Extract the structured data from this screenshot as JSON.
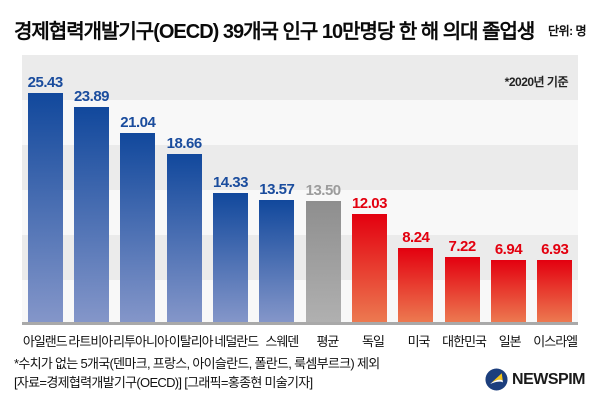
{
  "header": {
    "title": "경제협력개발기구(OECD) 39개국 인구 10만명당 한 해 의대 졸업생",
    "unit_label": "단위: 명"
  },
  "chart_data": {
    "type": "bar",
    "title": "경제협력개발기구(OECD) 39개국 인구 10만명당 한 해 의대 졸업생",
    "note": "*2020년 기준",
    "unit": "명",
    "ylim": [
      0,
      30
    ],
    "grid": "horizontal-bands",
    "categories": [
      "아일랜드",
      "라트비아",
      "리투아니아",
      "이탈리아",
      "네덜란드",
      "스웨덴",
      "평균",
      "독일",
      "미국",
      "대한민국",
      "일본",
      "이스라엘"
    ],
    "values": [
      25.43,
      23.89,
      21.04,
      18.66,
      14.33,
      13.57,
      13.5,
      12.03,
      8.24,
      7.22,
      6.94,
      6.93
    ],
    "items": [
      {
        "label": "아일랜드",
        "value": 25.43,
        "group": "blue"
      },
      {
        "label": "라트비아",
        "value": 23.89,
        "group": "blue"
      },
      {
        "label": "리투아니아",
        "value": 21.04,
        "group": "blue"
      },
      {
        "label": "이탈리아",
        "value": 18.66,
        "group": "blue"
      },
      {
        "label": "네덜란드",
        "value": 14.33,
        "group": "blue"
      },
      {
        "label": "스웨덴",
        "value": 13.57,
        "group": "blue"
      },
      {
        "label": "평균",
        "value": 13.5,
        "group": "gray"
      },
      {
        "label": "독일",
        "value": 12.03,
        "group": "red"
      },
      {
        "label": "미국",
        "value": 8.24,
        "group": "red"
      },
      {
        "label": "대한민국",
        "value": 7.22,
        "group": "red"
      },
      {
        "label": "일본",
        "value": 6.94,
        "group": "red"
      },
      {
        "label": "이스라엘",
        "value": 6.93,
        "group": "red"
      }
    ],
    "colors": {
      "blue": {
        "top": "#11489c",
        "bottom": "#8496c9",
        "label": "#1a4c9d"
      },
      "gray": {
        "top": "#8e8e8e",
        "bottom": "#b0b0b0",
        "label": "#9c9c9c"
      },
      "red": {
        "top": "#e3000f",
        "bottom": "#ec7950",
        "label": "#e3000f"
      }
    }
  },
  "footer": {
    "line1": "*수치가 없는 5개국(덴마크, 프랑스, 아이슬란드, 폴란드, 룩셈부르크) 제외",
    "line2": "[자료=경제협력개발기구(OECD)] [그래픽=홍종현 미술기자]",
    "logo_text": "NEWSPIM"
  }
}
